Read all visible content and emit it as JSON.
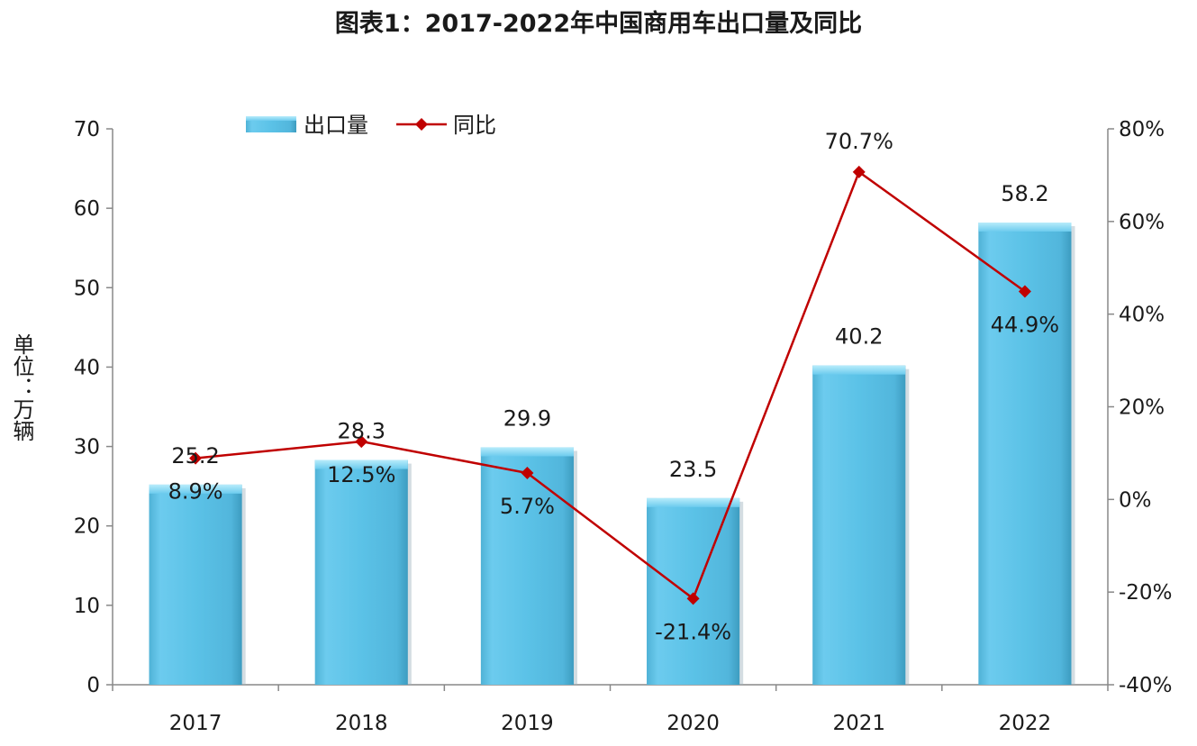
{
  "title": "图表1：2017-2022年中国商用车出口量及同比",
  "ylabel": "单位：万辆",
  "chart_data": {
    "type": "bar",
    "categories": [
      "2017",
      "2018",
      "2019",
      "2020",
      "2021",
      "2022"
    ],
    "series": [
      {
        "name": "出口量",
        "type": "bar",
        "axis": "left",
        "values": [
          25.2,
          28.3,
          29.9,
          23.5,
          40.2,
          58.2
        ],
        "labels": [
          "25.2",
          "28.3",
          "29.9",
          "23.5",
          "40.2",
          "58.2"
        ],
        "color": "#5bc2e7"
      },
      {
        "name": "同比",
        "type": "line",
        "axis": "right",
        "values": [
          8.9,
          12.5,
          5.7,
          -21.4,
          70.7,
          44.9
        ],
        "labels": [
          "8.9%",
          "12.5%",
          "5.7%",
          "-21.4%",
          "70.7%",
          "44.9%"
        ],
        "color": "#c00000"
      }
    ],
    "ylim_left": [
      0,
      70
    ],
    "yticks_left": [
      "0",
      "10",
      "20",
      "30",
      "40",
      "50",
      "60",
      "70"
    ],
    "ylim_right": [
      -40,
      80
    ],
    "yticks_right": [
      "-40%",
      "-20%",
      "0%",
      "20%",
      "40%",
      "60%",
      "80%"
    ],
    "ylabel": "单位：万辆",
    "grid": false,
    "legend": "top-left"
  }
}
